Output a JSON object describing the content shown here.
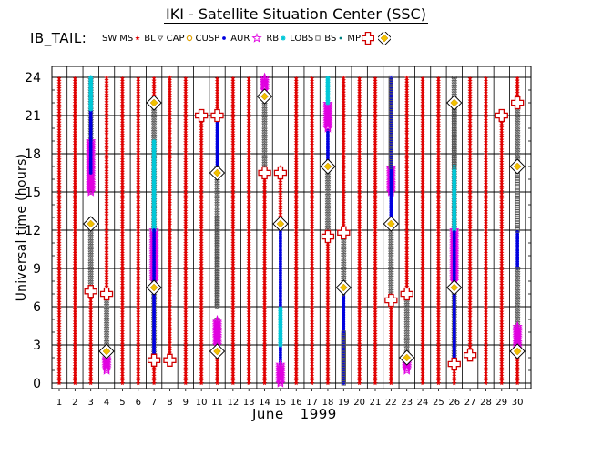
{
  "title": "IKI - Satellite Situation Center (SSC)",
  "panel_label": "IB_TAIL:",
  "chart_data": {
    "type": "scatter",
    "title": "IKI - Satellite Situation Center (SSC)",
    "xlabel": "June",
    "xlabel_year": "1999",
    "ylabel": "Universal time (hours)",
    "xlim": [
      1,
      30
    ],
    "ylim": [
      0,
      24
    ],
    "x_ticks": [
      "1",
      "2",
      "3",
      "4",
      "5",
      "6",
      "7",
      "8",
      "9",
      "10",
      "11",
      "12",
      "13",
      "14",
      "15",
      "16",
      "17",
      "18",
      "19",
      "20",
      "21",
      "22",
      "23",
      "24",
      "25",
      "26",
      "27",
      "28",
      "29",
      "30"
    ],
    "y_ticks": [
      "0",
      "3",
      "6",
      "9",
      "12",
      "15",
      "18",
      "21",
      "24"
    ],
    "legend": [
      {
        "code": "SW",
        "color": "#000000",
        "marker": "none"
      },
      {
        "code": "MS",
        "color": "#e00000",
        "marker": "star"
      },
      {
        "code": "BL",
        "color": "#555555",
        "marker": "tri-down"
      },
      {
        "code": "CAP",
        "color": "#e0a000",
        "marker": "circle-open"
      },
      {
        "code": "CUSP",
        "color": "#0000e0",
        "marker": "dot"
      },
      {
        "code": "AUR",
        "color": "#e000e0",
        "marker": "star-open"
      },
      {
        "code": "RB",
        "color": "#00c8d8",
        "marker": "asterisk"
      },
      {
        "code": "LOBS",
        "color": "#555555",
        "marker": "square-open"
      },
      {
        "code": "BS",
        "color": "#008080",
        "marker": "dot-small"
      },
      {
        "code": "MP",
        "color": "#d00000",
        "marker": "cross-open"
      },
      {
        "code": "",
        "color": "#000000",
        "marker": "diamond"
      }
    ],
    "series": [
      {
        "name": "MS",
        "day": 1,
        "segments": [
          [
            0,
            24
          ]
        ]
      },
      {
        "name": "MS",
        "day": 2,
        "segments": [
          [
            0,
            24
          ]
        ]
      },
      {
        "name": "MS",
        "day": 3,
        "segments": [
          [
            0,
            7
          ]
        ]
      },
      {
        "name": "BL",
        "day": 3,
        "segments": [
          [
            7,
            13
          ],
          [
            15,
            24
          ]
        ]
      },
      {
        "name": "AUR",
        "day": 3,
        "segments": [
          [
            15,
            19
          ]
        ]
      },
      {
        "name": "CUSP",
        "day": 3,
        "segments": [
          [
            16.5,
            24
          ]
        ]
      },
      {
        "name": "RB",
        "day": 3,
        "segments": [
          [
            21.5,
            24
          ]
        ]
      },
      {
        "name": "BL",
        "day": 4,
        "segments": [
          [
            3,
            7
          ]
        ]
      },
      {
        "name": "AUR",
        "day": 4,
        "segments": [
          [
            1,
            2
          ]
        ]
      },
      {
        "name": "MS",
        "day": 4,
        "segments": [
          [
            7,
            24
          ]
        ]
      },
      {
        "name": "MS",
        "day": 5,
        "segments": [
          [
            0,
            24
          ]
        ]
      },
      {
        "name": "MS",
        "day": 6,
        "segments": [
          [
            0,
            24
          ]
        ]
      },
      {
        "name": "MS",
        "day": 7,
        "segments": [
          [
            0,
            2
          ]
        ]
      },
      {
        "name": "AUR",
        "day": 7,
        "segments": [
          [
            8,
            12
          ]
        ]
      },
      {
        "name": "BL",
        "day": 7,
        "segments": [
          [
            2,
            8
          ],
          [
            12,
            22
          ]
        ]
      },
      {
        "name": "RB",
        "day": 7,
        "segments": [
          [
            12,
            19
          ]
        ]
      },
      {
        "name": "CUSP",
        "day": 7,
        "segments": [
          [
            2,
            12
          ]
        ]
      },
      {
        "name": "MS",
        "day": 7,
        "segments": [
          [
            22,
            24
          ]
        ]
      },
      {
        "name": "MS",
        "day": 8,
        "segments": [
          [
            2,
            24
          ]
        ]
      },
      {
        "name": "MS",
        "day": 9,
        "segments": [
          [
            0,
            24
          ]
        ]
      },
      {
        "name": "MS",
        "day": 10,
        "segments": [
          [
            0,
            21
          ]
        ]
      },
      {
        "name": "MS",
        "day": 11,
        "segments": [
          [
            21,
            24
          ]
        ]
      },
      {
        "name": "CUSP",
        "day": 11,
        "segments": [
          [
            17,
            21
          ]
        ]
      },
      {
        "name": "BL",
        "day": 11,
        "segments": [
          [
            3,
            5
          ],
          [
            6,
            17
          ]
        ]
      },
      {
        "name": "AUR",
        "day": 11,
        "segments": [
          [
            3,
            5
          ]
        ]
      },
      {
        "name": "LOBS",
        "day": 11,
        "segments": [
          [
            6,
            13
          ]
        ]
      },
      {
        "name": "MS",
        "day": 11,
        "segments": [
          [
            0,
            3
          ]
        ]
      },
      {
        "name": "MS",
        "day": 12,
        "segments": [
          [
            0,
            24
          ]
        ]
      },
      {
        "name": "MS",
        "day": 13,
        "segments": [
          [
            0,
            24
          ]
        ]
      },
      {
        "name": "MS",
        "day": 14,
        "segments": [
          [
            0,
            17
          ]
        ]
      },
      {
        "name": "BL",
        "day": 14,
        "segments": [
          [
            17,
            23
          ]
        ]
      },
      {
        "name": "AUR",
        "day": 14,
        "segments": [
          [
            23,
            24
          ]
        ]
      },
      {
        "name": "MS",
        "day": 15,
        "segments": [
          [
            12.5,
            17
          ]
        ]
      },
      {
        "name": "CUSP",
        "day": 15,
        "segments": [
          [
            1.5,
            12.5
          ]
        ]
      },
      {
        "name": "RB",
        "day": 15,
        "segments": [
          [
            3,
            6
          ]
        ]
      },
      {
        "name": "AUR",
        "day": 15,
        "segments": [
          [
            0,
            1.5
          ]
        ]
      },
      {
        "name": "MS",
        "day": 16,
        "segments": [
          [
            0,
            24
          ]
        ]
      },
      {
        "name": "MS",
        "day": 17,
        "segments": [
          [
            0,
            24
          ]
        ]
      },
      {
        "name": "MS",
        "day": 18,
        "segments": [
          [
            0,
            12
          ]
        ]
      },
      {
        "name": "BL",
        "day": 18,
        "segments": [
          [
            12,
            17
          ]
        ]
      },
      {
        "name": "CUSP",
        "day": 18,
        "segments": [
          [
            17,
            20
          ]
        ]
      },
      {
        "name": "AUR",
        "day": 18,
        "segments": [
          [
            20,
            22
          ]
        ]
      },
      {
        "name": "RB",
        "day": 18,
        "segments": [
          [
            22,
            24
          ]
        ]
      },
      {
        "name": "MS",
        "day": 19,
        "segments": [
          [
            12,
            24
          ]
        ]
      },
      {
        "name": "CUSP",
        "day": 19,
        "segments": [
          [
            0,
            7
          ]
        ]
      },
      {
        "name": "LOBS",
        "day": 19,
        "segments": [
          [
            0,
            4
          ]
        ]
      },
      {
        "name": "BL",
        "day": 19,
        "segments": [
          [
            7,
            12
          ]
        ]
      },
      {
        "name": "MS",
        "day": 20,
        "segments": [
          [
            0,
            24
          ]
        ]
      },
      {
        "name": "MS",
        "day": 21,
        "segments": [
          [
            0,
            24
          ]
        ]
      },
      {
        "name": "MS",
        "day": 22,
        "segments": [
          [
            0,
            7
          ]
        ]
      },
      {
        "name": "BL",
        "day": 22,
        "segments": [
          [
            7,
            12.5
          ]
        ]
      },
      {
        "name": "AUR",
        "day": 22,
        "segments": [
          [
            15,
            17
          ]
        ]
      },
      {
        "name": "CUSP",
        "day": 22,
        "segments": [
          [
            12.5,
            24
          ]
        ]
      },
      {
        "name": "LOBS",
        "day": 22,
        "segments": [
          [
            17,
            24
          ]
        ]
      },
      {
        "name": "AUR",
        "day": 23,
        "segments": [
          [
            1,
            2
          ]
        ]
      },
      {
        "name": "BL",
        "day": 23,
        "segments": [
          [
            2,
            7
          ]
        ]
      },
      {
        "name": "MS",
        "day": 23,
        "segments": [
          [
            7,
            24
          ]
        ]
      },
      {
        "name": "MS",
        "day": 24,
        "segments": [
          [
            0,
            24
          ]
        ]
      },
      {
        "name": "MS",
        "day": 25,
        "segments": [
          [
            0,
            24
          ]
        ]
      },
      {
        "name": "MS",
        "day": 26,
        "segments": [
          [
            0,
            1.5
          ]
        ]
      },
      {
        "name": "BL",
        "day": 26,
        "segments": [
          [
            1.5,
            8
          ],
          [
            12,
            24
          ]
        ]
      },
      {
        "name": "AUR",
        "day": 26,
        "segments": [
          [
            8,
            12
          ]
        ]
      },
      {
        "name": "RB",
        "day": 26,
        "segments": [
          [
            12,
            17
          ]
        ]
      },
      {
        "name": "LOBS",
        "day": 26,
        "segments": [
          [
            17,
            22
          ]
        ]
      },
      {
        "name": "CUSP",
        "day": 26,
        "segments": [
          [
            1.5,
            12
          ]
        ]
      },
      {
        "name": "MS",
        "day": 27,
        "segments": [
          [
            2.5,
            24
          ]
        ]
      },
      {
        "name": "MS",
        "day": 28,
        "segments": [
          [
            0,
            24
          ]
        ]
      },
      {
        "name": "MS",
        "day": 29,
        "segments": [
          [
            0,
            21
          ]
        ]
      },
      {
        "name": "MS",
        "day": 30,
        "segments": [
          [
            22,
            24
          ]
        ]
      },
      {
        "name": "CUSP",
        "day": 30,
        "segments": [
          [
            9,
            12
          ]
        ]
      },
      {
        "name": "LOBS",
        "day": 30,
        "segments": [
          [
            12,
            17
          ]
        ]
      },
      {
        "name": "BL",
        "day": 30,
        "segments": [
          [
            2,
            9
          ],
          [
            17,
            22
          ]
        ]
      },
      {
        "name": "AUR",
        "day": 30,
        "segments": [
          [
            2.5,
            4.5
          ]
        ]
      },
      {
        "name": "MS",
        "day": 30,
        "segments": [
          [
            0,
            2
          ]
        ]
      }
    ],
    "crossings": [
      {
        "type": "MP",
        "day": 3,
        "ut": 7.2
      },
      {
        "type": "diamond",
        "day": 3,
        "ut": 12.5
      },
      {
        "type": "MP",
        "day": 4,
        "ut": 7
      },
      {
        "type": "diamond",
        "day": 4,
        "ut": 2.5
      },
      {
        "type": "MP",
        "day": 7,
        "ut": 1.8
      },
      {
        "type": "diamond",
        "day": 7,
        "ut": 7.5
      },
      {
        "type": "diamond",
        "day": 7,
        "ut": 22
      },
      {
        "type": "MP",
        "day": 8,
        "ut": 1.8
      },
      {
        "type": "MP",
        "day": 10,
        "ut": 21
      },
      {
        "type": "MP",
        "day": 11,
        "ut": 21
      },
      {
        "type": "diamond",
        "day": 11,
        "ut": 16.5
      },
      {
        "type": "diamond",
        "day": 11,
        "ut": 2.5
      },
      {
        "type": "diamond",
        "day": 14,
        "ut": 22.5
      },
      {
        "type": "MP",
        "day": 14,
        "ut": 16.5
      },
      {
        "type": "MP",
        "day": 15,
        "ut": 16.5
      },
      {
        "type": "diamond",
        "day": 15,
        "ut": 12.5
      },
      {
        "type": "MP",
        "day": 18,
        "ut": 11.5
      },
      {
        "type": "diamond",
        "day": 18,
        "ut": 17
      },
      {
        "type": "MP",
        "day": 19,
        "ut": 11.8
      },
      {
        "type": "diamond",
        "day": 19,
        "ut": 7.5
      },
      {
        "type": "MP",
        "day": 22,
        "ut": 6.5
      },
      {
        "type": "diamond",
        "day": 22,
        "ut": 12.5
      },
      {
        "type": "MP",
        "day": 23,
        "ut": 7
      },
      {
        "type": "diamond",
        "day": 23,
        "ut": 2
      },
      {
        "type": "diamond",
        "day": 26,
        "ut": 22
      },
      {
        "type": "diamond",
        "day": 26,
        "ut": 7.5
      },
      {
        "type": "MP",
        "day": 26,
        "ut": 1.5
      },
      {
        "type": "MP",
        "day": 27,
        "ut": 2.2
      },
      {
        "type": "MP",
        "day": 29,
        "ut": 21
      },
      {
        "type": "MP",
        "day": 30,
        "ut": 22
      },
      {
        "type": "diamond",
        "day": 30,
        "ut": 17
      },
      {
        "type": "diamond",
        "day": 30,
        "ut": 2.5
      }
    ]
  }
}
